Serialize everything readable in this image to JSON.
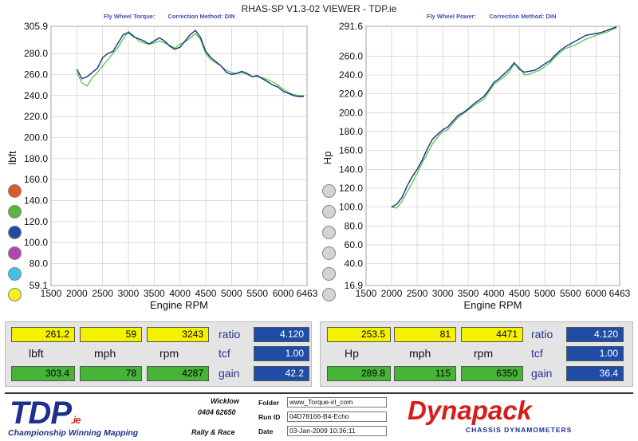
{
  "window_title": "RHAS-SP V1.3-02 VIEWER - TDP.ie",
  "left_header": {
    "label_a": "Fly Wheel Torque:",
    "label_b": "Correction Method: DIN"
  },
  "right_header": {
    "label_a": "Fly Wheel Power:",
    "label_b": "Correction Method: DIN"
  },
  "chart_data": [
    {
      "type": "line",
      "ylabel": "lbft",
      "xlabel": "Engine RPM",
      "xlim": [
        1500,
        6463
      ],
      "ylim": [
        59.1,
        305.9
      ],
      "x_ticks": [
        "1500",
        "2000",
        "2500",
        "3000",
        "3500",
        "4000",
        "4500",
        "5000",
        "5500",
        "6000",
        "6463"
      ],
      "y_ticks": [
        {
          "v": 59.1,
          "t": "59.1"
        },
        {
          "v": 80,
          "t": "80.0"
        },
        {
          "v": 100,
          "t": "100.0"
        },
        {
          "v": 120,
          "t": "120.0"
        },
        {
          "v": 140,
          "t": "140.0"
        },
        {
          "v": 160,
          "t": "160.0"
        },
        {
          "v": 180,
          "t": "180.0"
        },
        {
          "v": 200,
          "t": "200.0"
        },
        {
          "v": 220,
          "t": "220.0"
        },
        {
          "v": 240,
          "t": "240.0"
        },
        {
          "v": 260,
          "t": "260.0"
        },
        {
          "v": 280,
          "t": "280.0"
        },
        {
          "v": 305.9,
          "t": "305.9"
        }
      ],
      "series": [
        {
          "color": "#5dc24a",
          "x": [
            2000,
            2100,
            2200,
            2300,
            2400,
            2500,
            2600,
            2700,
            2800,
            2900,
            3000,
            3100,
            3200,
            3300,
            3400,
            3500,
            3600,
            3700,
            3800,
            3900,
            4000,
            4100,
            4200,
            4300,
            4400,
            4500,
            4600,
            4700,
            4800,
            4900,
            5000,
            5100,
            5200,
            5300,
            5400,
            5500,
            5600,
            5700,
            5800,
            5900,
            6000,
            6100,
            6200,
            6300,
            6400
          ],
          "y": [
            262,
            252,
            249,
            257,
            262,
            268,
            274,
            280,
            286,
            294,
            301,
            297,
            292,
            290,
            289,
            290,
            292,
            290,
            288,
            285,
            289,
            291,
            295,
            299,
            293,
            280,
            274,
            271,
            268,
            264,
            262,
            261,
            262,
            260,
            258,
            258,
            257,
            255,
            253,
            250,
            246,
            243,
            241,
            240,
            240
          ]
        },
        {
          "color": "#1c3d8f",
          "x": [
            2000,
            2100,
            2200,
            2300,
            2400,
            2500,
            2600,
            2700,
            2800,
            2900,
            3000,
            3100,
            3200,
            3300,
            3400,
            3500,
            3600,
            3700,
            3800,
            3900,
            4000,
            4100,
            4200,
            4300,
            4400,
            4500,
            4600,
            4700,
            4800,
            4900,
            5000,
            5100,
            5200,
            5300,
            5400,
            5500,
            5600,
            5700,
            5800,
            5900,
            6000,
            6100,
            6200,
            6300,
            6400
          ],
          "y": [
            265,
            256,
            258,
            262,
            266,
            276,
            280,
            282,
            290,
            298,
            300,
            296,
            294,
            292,
            289,
            292,
            295,
            292,
            287,
            284,
            286,
            292,
            298,
            302,
            295,
            282,
            276,
            272,
            268,
            262,
            260,
            261,
            263,
            261,
            258,
            259,
            256,
            253,
            250,
            248,
            244,
            242,
            240,
            239,
            239
          ]
        }
      ]
    },
    {
      "type": "line",
      "ylabel": "Hp",
      "xlabel": "Engine RPM",
      "xlim": [
        1500,
        6463
      ],
      "ylim": [
        16.9,
        291.6
      ],
      "x_ticks": [
        "1500",
        "2000",
        "2500",
        "3000",
        "3500",
        "4000",
        "4500",
        "5000",
        "5500",
        "6000",
        "6463"
      ],
      "y_ticks": [
        {
          "v": 16.9,
          "t": "16.9"
        },
        {
          "v": 40,
          "t": "40.0"
        },
        {
          "v": 60,
          "t": "60.0"
        },
        {
          "v": 80,
          "t": "80.0"
        },
        {
          "v": 100,
          "t": "100.0"
        },
        {
          "v": 120,
          "t": "120.0"
        },
        {
          "v": 140,
          "t": "140.0"
        },
        {
          "v": 160,
          "t": "160.0"
        },
        {
          "v": 180,
          "t": "180.0"
        },
        {
          "v": 200,
          "t": "200.0"
        },
        {
          "v": 220,
          "t": "220.0"
        },
        {
          "v": 240,
          "t": "240.0"
        },
        {
          "v": 260,
          "t": "260.0"
        },
        {
          "v": 291.6,
          "t": "291.6"
        }
      ],
      "series": [
        {
          "color": "#5dc24a",
          "x": [
            2000,
            2100,
            2200,
            2300,
            2400,
            2500,
            2600,
            2700,
            2800,
            2900,
            3000,
            3100,
            3200,
            3300,
            3400,
            3500,
            3600,
            3700,
            3800,
            3900,
            4000,
            4100,
            4200,
            4300,
            4400,
            4500,
            4600,
            4700,
            4800,
            4900,
            5000,
            5100,
            5200,
            5300,
            5400,
            5500,
            5600,
            5700,
            5800,
            5900,
            6000,
            6100,
            6200,
            6300,
            6400
          ],
          "y": [
            100,
            99,
            106,
            116,
            125,
            136,
            147,
            157,
            167,
            174,
            180,
            182,
            189,
            195,
            199,
            203,
            207,
            211,
            214,
            222,
            230,
            234,
            238,
            243,
            252,
            248,
            240,
            241,
            243,
            245,
            249,
            253,
            259,
            264,
            268,
            270,
            272,
            275,
            278,
            280,
            282,
            284,
            285,
            288,
            290
          ]
        },
        {
          "color": "#1c3d8f",
          "x": [
            2000,
            2100,
            2200,
            2300,
            2400,
            2500,
            2600,
            2700,
            2800,
            2900,
            3000,
            3100,
            3200,
            3300,
            3400,
            3500,
            3600,
            3700,
            3800,
            3900,
            4000,
            4100,
            4200,
            4300,
            4400,
            4500,
            4600,
            4700,
            4800,
            4900,
            5000,
            5100,
            5200,
            5300,
            5400,
            5500,
            5600,
            5700,
            5800,
            5900,
            6000,
            6100,
            6200,
            6300,
            6400
          ],
          "y": [
            100,
            103,
            110,
            122,
            132,
            140,
            150,
            162,
            172,
            177,
            182,
            185,
            191,
            197,
            200,
            204,
            209,
            213,
            217,
            224,
            232,
            236,
            241,
            246,
            253,
            246,
            243,
            244,
            245,
            248,
            252,
            255,
            261,
            266,
            270,
            273,
            276,
            279,
            282,
            283,
            284,
            285,
            287,
            289,
            291
          ]
        }
      ]
    }
  ],
  "legend_dots": {
    "left": [
      "#d95a2b",
      "#58b63e",
      "#2248a0",
      "#b046b0",
      "#43c0e8",
      "#f6ef1e"
    ],
    "right": [
      "#d4d4d4",
      "#d4d4d4",
      "#d4d4d4",
      "#d4d4d4",
      "#d4d4d4",
      "#d4d4d4"
    ]
  },
  "left_readout": {
    "current": [
      "261.2",
      "59",
      "3243"
    ],
    "units": [
      "lbft",
      "mph",
      "rpm"
    ],
    "peak": [
      "303.4",
      "78",
      "4287"
    ],
    "ratio_label": "ratio",
    "ratio": "4.120",
    "tcf_label": "tcf",
    "tcf": "1.00",
    "gain_label": "gain",
    "gain": "42.2"
  },
  "right_readout": {
    "current": [
      "253.5",
      "81",
      "4471"
    ],
    "units": [
      "Hp",
      "mph",
      "rpm"
    ],
    "peak": [
      "289.8",
      "115",
      "6350"
    ],
    "ratio_label": "ratio",
    "ratio": "4.120",
    "tcf_label": "tcf",
    "tcf": "1.00",
    "gain_label": "gain",
    "gain": "36.4"
  },
  "footer": {
    "logo": "TDP",
    "logo_suffix": ".ie",
    "tagline": "Championship Winning Mapping",
    "location": "Wicklow",
    "phone": "0404 62650",
    "motto": "Rally & Race",
    "folder_label": "Folder",
    "folder": "www_Torque-irl_com",
    "runid_label": "Run ID",
    "runid": "04D78166-B4-Echo",
    "date_label": "Date",
    "date": "03-Jan-2009   10:36:11",
    "brand": "Dynapack",
    "brand_sub": "CHASSIS DYNAMOMETERS"
  }
}
